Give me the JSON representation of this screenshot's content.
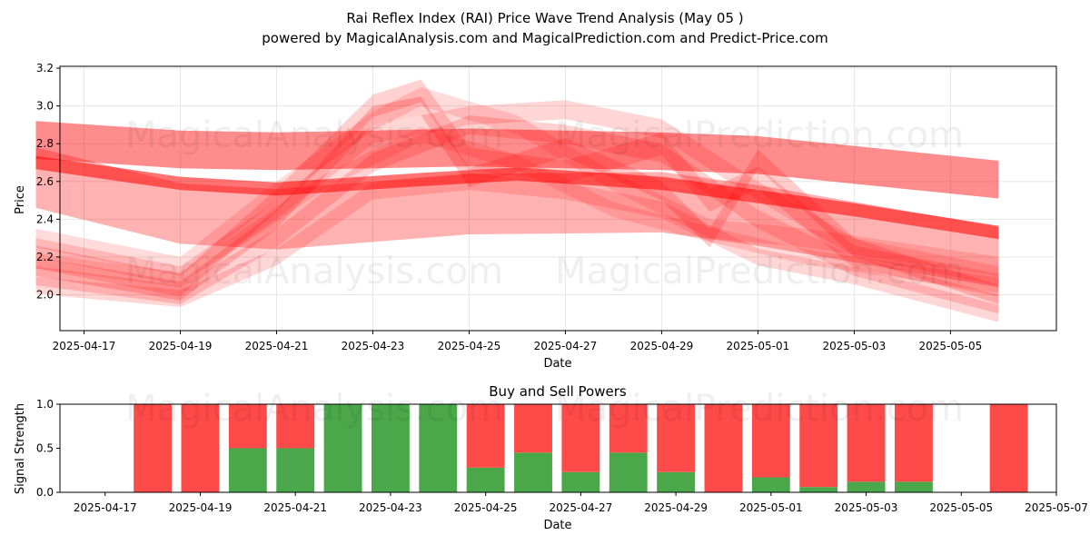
{
  "header": {
    "title": "Rai Reflex Index (RAI) Price Wave Trend Analysis (May 05 )",
    "subtitle": "powered by MagicalAnalysis.com and MagicalPrediction.com and Predict-Price.com"
  },
  "watermarks": [
    "MagicalAnalysis.com",
    "MagicalPrediction.com"
  ],
  "colors": {
    "red_band": "#ff0000",
    "sell": "#ff4a4a",
    "buy": "#4aa84a",
    "grid": "#e6e6e6"
  },
  "chart_data": [
    {
      "type": "area",
      "title": "",
      "xlabel": "Date",
      "ylabel": "Price",
      "x_range": [
        "2025-04-16.5",
        "2025-05-07.2"
      ],
      "ylim": [
        1.81,
        3.21
      ],
      "y_ticks": [
        "2.0",
        "2.2",
        "2.4",
        "2.6",
        "2.8",
        "3.0",
        "3.2"
      ],
      "x_ticks": [
        "2025-04-17",
        "2025-04-19",
        "2025-04-21",
        "2025-04-23",
        "2025-04-25",
        "2025-04-27",
        "2025-04-29",
        "2025-05-01",
        "2025-05-03",
        "2025-05-05"
      ],
      "bands": [
        {
          "x": [
            "2025-04-16",
            "2025-04-19",
            "2025-04-21",
            "2025-04-25",
            "2025-04-29",
            "2025-05-01",
            "2025-05-06"
          ],
          "center": [
            2.82,
            2.77,
            2.76,
            2.78,
            2.76,
            2.74,
            2.61
          ],
          "width": 0.2,
          "alpha": 0.45
        },
        {
          "x": [
            "2025-04-16",
            "2025-04-19",
            "2025-04-21",
            "2025-04-25",
            "2025-04-29",
            "2025-05-01",
            "2025-05-06"
          ],
          "center": [
            2.62,
            2.43,
            2.4,
            2.48,
            2.49,
            2.42,
            2.2
          ],
          "width": 0.32,
          "alpha": 0.3
        },
        {
          "x": [
            "2025-04-16",
            "2025-04-19",
            "2025-04-21",
            "2025-04-24",
            "2025-04-26",
            "2025-04-29",
            "2025-05-01",
            "2025-05-03",
            "2025-05-06"
          ],
          "center": [
            2.7,
            2.59,
            2.56,
            2.61,
            2.64,
            2.59,
            2.52,
            2.45,
            2.33
          ],
          "width": 0.07,
          "alpha": 0.55
        },
        {
          "x": [
            "2025-04-16",
            "2025-04-19",
            "2025-04-21",
            "2025-04-23",
            "2025-04-24",
            "2025-04-25",
            "2025-04-27",
            "2025-04-29",
            "2025-04-30",
            "2025-05-01",
            "2025-05-03",
            "2025-05-06"
          ],
          "center": [
            2.15,
            2.02,
            2.4,
            2.95,
            3.0,
            2.62,
            2.78,
            2.55,
            2.3,
            2.72,
            2.25,
            2.0
          ],
          "width": 0.1,
          "alpha": 0.2
        },
        {
          "x": [
            "2025-04-16",
            "2025-04-19",
            "2025-04-21",
            "2025-04-23",
            "2025-04-24",
            "2025-04-25",
            "2025-04-27",
            "2025-04-29",
            "2025-04-30",
            "2025-05-01",
            "2025-05-03",
            "2025-05-06"
          ],
          "center": [
            2.2,
            2.05,
            2.5,
            3.0,
            3.08,
            2.72,
            2.65,
            2.8,
            2.5,
            2.62,
            2.2,
            2.05
          ],
          "width": 0.12,
          "alpha": 0.18
        },
        {
          "x": [
            "2025-04-16",
            "2025-04-19",
            "2025-04-21",
            "2025-04-23",
            "2025-04-25",
            "2025-04-27",
            "2025-04-29",
            "2025-05-01",
            "2025-05-03",
            "2025-05-06"
          ],
          "center": [
            2.1,
            2.0,
            2.3,
            2.7,
            2.9,
            2.85,
            2.75,
            2.4,
            2.15,
            1.95
          ],
          "width": 0.1,
          "alpha": 0.18
        },
        {
          "x": [
            "2025-04-16",
            "2025-04-19",
            "2025-04-21",
            "2025-04-23",
            "2025-04-25",
            "2025-04-27",
            "2025-04-29",
            "2025-05-01",
            "2025-05-03",
            "2025-05-06"
          ],
          "center": [
            2.25,
            2.1,
            2.45,
            2.85,
            2.95,
            2.98,
            2.88,
            2.55,
            2.25,
            2.1
          ],
          "width": 0.1,
          "alpha": 0.16
        },
        {
          "x": [
            "2025-04-16",
            "2025-04-19",
            "2025-04-21",
            "2025-04-23",
            "2025-04-25",
            "2025-04-27",
            "2025-04-29",
            "2025-05-01",
            "2025-05-03",
            "2025-05-06"
          ],
          "center": [
            2.05,
            1.98,
            2.2,
            2.55,
            2.6,
            2.55,
            2.45,
            2.2,
            2.1,
            1.9
          ],
          "width": 0.09,
          "alpha": 0.16
        },
        {
          "x": [
            "2025-04-16",
            "2025-04-19",
            "2025-04-21",
            "2025-04-23",
            "2025-04-24",
            "2025-04-26",
            "2025-04-28",
            "2025-04-30",
            "2025-05-02",
            "2025-05-06"
          ],
          "center": [
            2.3,
            2.15,
            2.55,
            2.92,
            3.05,
            2.9,
            2.6,
            2.35,
            2.3,
            2.15
          ],
          "width": 0.1,
          "alpha": 0.14
        },
        {
          "x": [
            "2025-04-16",
            "2025-04-19",
            "2025-04-22",
            "2025-04-24",
            "2025-04-26",
            "2025-04-28",
            "2025-04-30",
            "2025-05-02",
            "2025-05-06"
          ],
          "center": [
            2.18,
            2.08,
            2.6,
            2.85,
            2.7,
            2.45,
            2.32,
            2.2,
            2.05
          ],
          "width": 0.08,
          "alpha": 0.14
        }
      ]
    },
    {
      "type": "bar",
      "title": "Buy and Sell Powers",
      "xlabel": "Date",
      "ylabel": "Signal Strength",
      "ylim": [
        0,
        1
      ],
      "y_ticks": [
        "0.0",
        "0.5",
        "1.0"
      ],
      "x_ticks": [
        "2025-04-17",
        "2025-04-19",
        "2025-04-21",
        "2025-04-23",
        "2025-04-25",
        "2025-04-27",
        "2025-04-29",
        "2025-05-01",
        "2025-05-03",
        "2025-05-05",
        "2025-05-07"
      ],
      "categories": [
        "2025-04-18",
        "2025-04-19",
        "2025-04-20",
        "2025-04-21",
        "2025-04-22",
        "2025-04-23",
        "2025-04-24",
        "2025-04-25",
        "2025-04-26",
        "2025-04-27",
        "2025-04-28",
        "2025-04-29",
        "2025-04-30",
        "2025-05-01",
        "2025-05-02",
        "2025-05-03",
        "2025-05-04",
        "2025-05-06"
      ],
      "series": [
        {
          "name": "Buy",
          "values": [
            0,
            0,
            0.5,
            0.5,
            1.0,
            1.0,
            1.0,
            0.28,
            0.45,
            0.23,
            0.45,
            0.23,
            0,
            0.17,
            0.06,
            0.12,
            0.12,
            0
          ]
        },
        {
          "name": "Sell",
          "values": [
            1.0,
            1.0,
            0.5,
            0.5,
            0,
            0,
            0,
            0.72,
            0.55,
            0.77,
            0.55,
            0.77,
            1.0,
            0.83,
            0.94,
            0.88,
            0.88,
            1.0
          ]
        }
      ]
    }
  ]
}
